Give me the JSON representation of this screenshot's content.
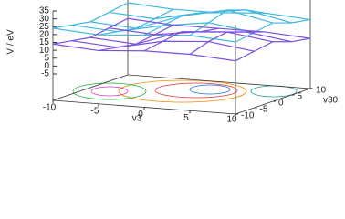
{
  "chart_data": {
    "type": "surface3d",
    "zlabel": "V / eV",
    "xlabel": "v3",
    "ylabel": "v30",
    "x": [
      -10,
      -5,
      0,
      5,
      10
    ],
    "y": [
      -10,
      -5,
      0,
      5,
      10
    ],
    "xlim": [
      -10,
      10
    ],
    "ylim": [
      -10,
      10
    ],
    "zlim": [
      -5,
      35
    ],
    "xticks": [
      -10,
      -5,
      0,
      5,
      10
    ],
    "yticks": [
      -10,
      -5,
      0,
      5,
      10
    ],
    "zticks": [
      -5,
      0,
      5,
      10,
      15,
      20,
      25,
      30,
      35
    ],
    "surfaces": [
      {
        "color": "#3fb8e0",
        "z": [
          [
            24,
            22,
            20,
            22,
            24
          ],
          [
            22,
            20,
            18,
            20,
            22
          ],
          [
            24,
            26,
            28,
            26,
            22
          ],
          [
            26,
            30,
            34,
            30,
            24
          ],
          [
            24,
            26,
            28,
            24,
            22
          ]
        ]
      },
      {
        "color": "#7a4fe0",
        "z": [
          [
            14,
            12,
            10,
            12,
            14
          ],
          [
            12,
            10,
            8,
            10,
            12
          ],
          [
            14,
            16,
            18,
            14,
            12
          ],
          [
            14,
            18,
            20,
            16,
            12
          ],
          [
            12,
            14,
            16,
            12,
            10
          ]
        ]
      }
    ]
  }
}
